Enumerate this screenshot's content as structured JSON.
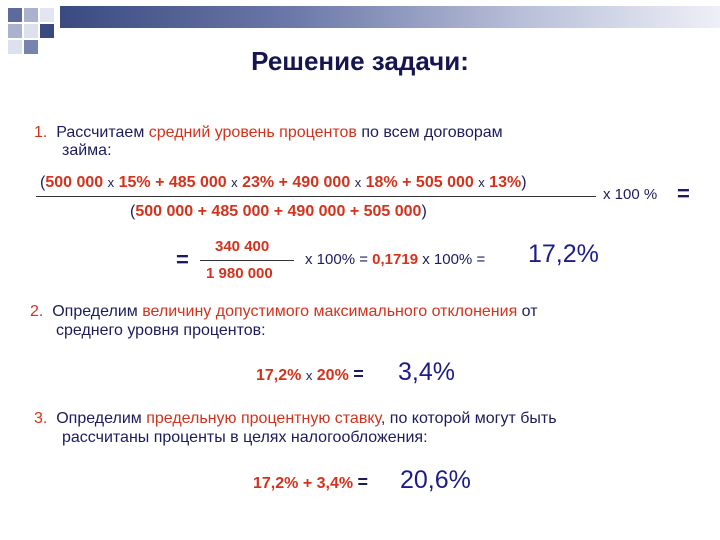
{
  "colors": {
    "accent": "#d4321c",
    "text": "#1c1c5c",
    "band": "#3a4a80"
  },
  "title": "Решение задачи:",
  "step1": {
    "number": "1.",
    "text_before": "Рассчитаем ",
    "highlight": "средний уровень процентов",
    "text_after": " по всем договорам",
    "line2": "займа:",
    "numerator": {
      "open": "(",
      "a": "500 000",
      "x1": "x",
      "p1": "15%",
      "plus1": "+",
      "b": "485 000",
      "x2": "x",
      "p2": "23%",
      "plus2": "+",
      "c": "490 000",
      "x3": "x",
      "p3": "18%",
      "plus3": "+",
      "d": "505 000",
      "x4": "x",
      "p4": "13%",
      "close": ")"
    },
    "denominator": {
      "open": "(",
      "a": "500 000",
      "plus1": "+",
      "b": "485 000",
      "plus2": "+",
      "c": "490 000",
      "plus3": "+",
      "d": "505 000",
      "close": ")"
    },
    "times100": "x 100 %",
    "equals": "=",
    "eq2": "=",
    "frac2_num": "340 400",
    "frac2_den": "1 980 000",
    "x100a": "x 100%",
    "eq3": "=",
    "decimal": "0,1719",
    "x100b": "x 100%",
    "eq4": "=",
    "result": "17,2%"
  },
  "step2": {
    "number": "2.",
    "text_before": "Определим ",
    "highlight": "величину допустимого максимального отклонения",
    "text_after": " от",
    "line2": "среднего уровня процентов:",
    "calc_a": "17,2%",
    "calc_x": "x",
    "calc_b": "20%",
    "calc_eq": "=",
    "result": "3,4%"
  },
  "step3": {
    "number": "3.",
    "text_before": "Определим ",
    "highlight": "предельную процентную ставку",
    "text_after": ", по которой могут быть",
    "line2": "рассчитаны проценты в целях налогообложения:",
    "calc_a": "17,2%",
    "calc_plus": "+",
    "calc_b": "3,4%",
    "calc_eq": "=",
    "result": "20,6%"
  }
}
